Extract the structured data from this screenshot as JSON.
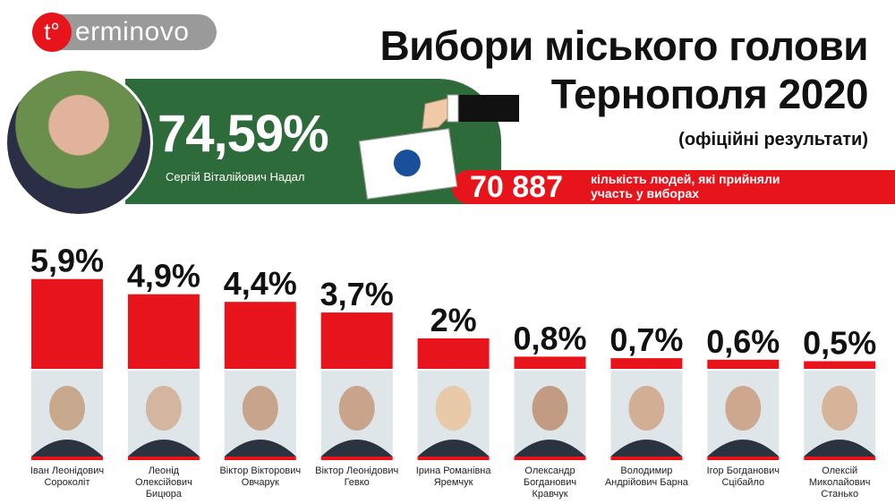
{
  "logo": {
    "mark": "t°",
    "text": "erminovo"
  },
  "chart_data": {
    "type": "bar",
    "title": "Вибори міського голови Тернополя 2020",
    "subtitle": "(офіційні результати)",
    "winner": {
      "value_label": "74,59%",
      "name": "Сергій Віталійович Надал"
    },
    "turnout": {
      "value_label": "70 887",
      "label": "кількість людей, які прийняли участь у виборах"
    },
    "categories": [
      "Іван Леонідович Сороколіт",
      "Леонід Олексійович Бицюра",
      "Віктор Вікторович Овчарук",
      "Віктор Леонідович Гевко",
      "Ірина Романівна Яремчук",
      "Олександр Богданович Кравчук",
      "Володимир Андрійович Барна",
      "Ігор Богданович Сцібайло",
      "Олексій Миколайович Станько"
    ],
    "values": [
      5.9,
      4.9,
      4.4,
      3.7,
      2,
      0.8,
      0.7,
      0.6,
      0.5
    ],
    "value_labels": [
      "5,9%",
      "4,9%",
      "4,4%",
      "3,7%",
      "2%",
      "0,8%",
      "0,7%",
      "0,6%",
      "0,5%"
    ],
    "color": "#e8141b"
  }
}
